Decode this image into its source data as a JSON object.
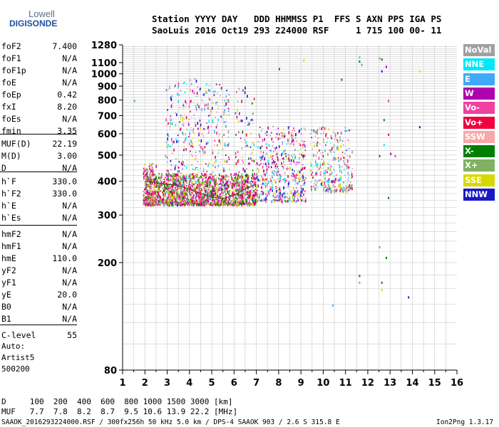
{
  "logo": {
    "line1": "Lowell",
    "line2": "DIGISONDE"
  },
  "header": {
    "line1": "Station YYYY DAY   DDD HHMMSS P1  FFS S AXN PPS IGA PS",
    "line2": "SaoLuis 2016 Oct19 293 224000 RSF     1 715 100 00- 11"
  },
  "params": [
    {
      "name": "foF2",
      "value": "7.400"
    },
    {
      "name": "foF1",
      "value": "N/A"
    },
    {
      "name": "foF1p",
      "value": "N/A"
    },
    {
      "name": "foE",
      "value": "N/A"
    },
    {
      "name": "foEp",
      "value": "0.42"
    },
    {
      "name": "fxI",
      "value": "8.20"
    },
    {
      "name": "foEs",
      "value": "N/A"
    },
    {
      "name": "fmin",
      "value": "3.35"
    },
    {
      "name": "MUF(D)",
      "value": "22.19"
    },
    {
      "name": "M(D)",
      "value": "3.00"
    },
    {
      "name": "D",
      "value": "N/A"
    },
    {
      "name": "h`F",
      "value": "330.0"
    },
    {
      "name": "h`F2",
      "value": "330.0"
    },
    {
      "name": "h`E",
      "value": "N/A"
    },
    {
      "name": "h`Es",
      "value": "N/A"
    },
    {
      "name": "hmF2",
      "value": "N/A"
    },
    {
      "name": "hmF1",
      "value": "N/A"
    },
    {
      "name": "hmE",
      "value": "110.0"
    },
    {
      "name": "yF2",
      "value": "N/A"
    },
    {
      "name": "yF1",
      "value": "N/A"
    },
    {
      "name": "yE",
      "value": "20.0"
    },
    {
      "name": "B0",
      "value": "N/A"
    },
    {
      "name": "B1",
      "value": "N/A"
    },
    {
      "name": "C-level",
      "value": "55"
    }
  ],
  "auto": {
    "line1": "Auto:",
    "line2": "Artist5",
    "line3": "500200"
  },
  "legend": [
    {
      "label": "NoVal",
      "color": "#a0a0a0"
    },
    {
      "label": "NNE",
      "color": "#00e8f8"
    },
    {
      "label": "E",
      "color": "#40a8f8"
    },
    {
      "label": "W",
      "color": "#b000b0"
    },
    {
      "label": "Vo-",
      "color": "#f040a0"
    },
    {
      "label": "Vo+",
      "color": "#f00040"
    },
    {
      "label": "SSW",
      "color": "#f8a8a8"
    },
    {
      "label": "X-",
      "color": "#008000"
    },
    {
      "label": "X+",
      "color": "#80b060"
    },
    {
      "label": "SSE",
      "color": "#d8d800"
    },
    {
      "label": "NNW",
      "color": "#1818c8"
    }
  ],
  "footer": {
    "d_row": "D     100  200  400  600  800 1000 1500 3000 [km]",
    "muf_row": "MUF   7.7  7.8  8.2  8.7  9.5 10.6 13.9 22.2 [MHz]",
    "info": "SAAOK_2016293224000.RSF / 300fx256h 50 kHz 5.0 km / DPS-4 SAAOK 903 / 2.6 S 315.8 E",
    "version": "Ion2Png 1.3.17"
  },
  "chart_data": {
    "type": "scatter",
    "x_ticks": [
      "1",
      "2",
      "3",
      "4",
      "5",
      "6",
      "7",
      "8",
      "9",
      "10",
      "11",
      "12",
      "13",
      "14",
      "15",
      "16"
    ],
    "y_ticks": [
      "1280",
      "1100",
      "1000",
      "900",
      "800",
      "700",
      "600",
      "500",
      "400",
      "300",
      "200",
      "80"
    ],
    "xlim": [
      1,
      16
    ],
    "y_scale": "log",
    "ylim": [
      80,
      1280
    ],
    "grid": true,
    "legend_placement": "right",
    "trace": {
      "x": [
        2.0,
        2.5,
        3.0,
        3.5,
        4.0,
        4.5,
        5.0,
        5.5,
        6.0,
        6.5,
        7.0
      ],
      "y": [
        400,
        395,
        390,
        385,
        375,
        360,
        350,
        345,
        355,
        375,
        390
      ]
    },
    "clusters": [
      {
        "x": [
          1.9,
          2.5
        ],
        "y": [
          330,
          470
        ],
        "density": 0.9,
        "colors": [
          5,
          4,
          3,
          0,
          9
        ]
      },
      {
        "x": [
          2.9,
          3.6
        ],
        "y": [
          330,
          960
        ],
        "density": 0.55,
        "colors": [
          3,
          4,
          5,
          9,
          1,
          2,
          10,
          0
        ]
      },
      {
        "x": [
          3.6,
          4.5
        ],
        "y": [
          330,
          960
        ],
        "density": 0.5,
        "colors": [
          3,
          4,
          5,
          9,
          1,
          2,
          10,
          0,
          6
        ]
      },
      {
        "x": [
          4.5,
          5.8
        ],
        "y": [
          330,
          930
        ],
        "density": 0.45,
        "colors": [
          3,
          4,
          5,
          9,
          1,
          2,
          10,
          0,
          6
        ]
      },
      {
        "x": [
          6.0,
          6.9
        ],
        "y": [
          340,
          900
        ],
        "density": 0.35,
        "colors": [
          3,
          4,
          5,
          9,
          1,
          7,
          10,
          0
        ]
      },
      {
        "x": [
          7.0,
          8.0
        ],
        "y": [
          340,
          640
        ],
        "density": 0.5,
        "colors": [
          5,
          4,
          3,
          9,
          1,
          2,
          10,
          0
        ]
      },
      {
        "x": [
          8.0,
          9.2
        ],
        "y": [
          340,
          640
        ],
        "density": 0.55,
        "colors": [
          5,
          4,
          3,
          9,
          1,
          2,
          10,
          0,
          6
        ]
      },
      {
        "x": [
          9.4,
          11.3
        ],
        "y": [
          370,
          640
        ],
        "density": 0.4,
        "colors": [
          9,
          1,
          0,
          2,
          3,
          5,
          8,
          4
        ]
      },
      {
        "x": [
          2.0,
          7.0
        ],
        "y": [
          330,
          430
        ],
        "density": 0.8,
        "colors": [
          5,
          4,
          9,
          3,
          8,
          7,
          0
        ]
      }
    ],
    "outliers": [
      {
        "x": 11.6,
        "y": 1160,
        "c": 1
      },
      {
        "x": 11.6,
        "y": 1120,
        "c": 7
      },
      {
        "x": 11.7,
        "y": 1090,
        "c": 2
      },
      {
        "x": 12.5,
        "y": 1150,
        "c": 8
      },
      {
        "x": 12.6,
        "y": 1140,
        "c": 7
      },
      {
        "x": 12.6,
        "y": 1030,
        "c": 10
      },
      {
        "x": 12.8,
        "y": 1070,
        "c": 3
      },
      {
        "x": 14.3,
        "y": 1030,
        "c": 9
      },
      {
        "x": 12.9,
        "y": 800,
        "c": 4
      },
      {
        "x": 12.7,
        "y": 680,
        "c": 7
      },
      {
        "x": 12.9,
        "y": 600,
        "c": 5
      },
      {
        "x": 13.0,
        "y": 510,
        "c": 3
      },
      {
        "x": 13.2,
        "y": 500,
        "c": 4
      },
      {
        "x": 12.5,
        "y": 500,
        "c": 7
      },
      {
        "x": 12.9,
        "y": 350,
        "c": 7
      },
      {
        "x": 12.5,
        "y": 230,
        "c": 8
      },
      {
        "x": 12.8,
        "y": 210,
        "c": 7
      },
      {
        "x": 11.6,
        "y": 180,
        "c": 7
      },
      {
        "x": 11.6,
        "y": 170,
        "c": 8
      },
      {
        "x": 12.6,
        "y": 170,
        "c": 7
      },
      {
        "x": 12.6,
        "y": 160,
        "c": 9
      },
      {
        "x": 13.8,
        "y": 150,
        "c": 10
      },
      {
        "x": 10.4,
        "y": 140,
        "c": 2
      },
      {
        "x": 14.3,
        "y": 640,
        "c": 10
      },
      {
        "x": 1.5,
        "y": 800,
        "c": 2
      },
      {
        "x": 8.0,
        "y": 1050,
        "c": 3
      },
      {
        "x": 9.1,
        "y": 1130,
        "c": 9
      },
      {
        "x": 10.8,
        "y": 960,
        "c": 7
      },
      {
        "x": 12.7,
        "y": 550,
        "c": 1
      }
    ]
  }
}
